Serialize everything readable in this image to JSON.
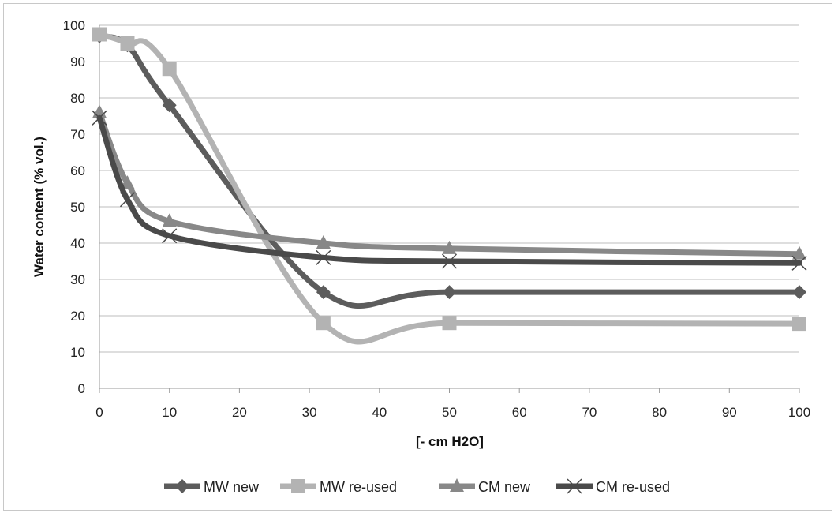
{
  "chart_data": {
    "type": "line",
    "title": "",
    "xlabel": "[- cm H2O]",
    "xlabel_main": "[- cm H",
    "xlabel_sub": "2",
    "xlabel_end": "O]",
    "ylabel": "Water content (% vol.)",
    "xlim": [
      0,
      100
    ],
    "ylim": [
      0,
      100
    ],
    "xticks": [
      0,
      10,
      20,
      30,
      40,
      50,
      60,
      70,
      80,
      90,
      100
    ],
    "yticks": [
      0,
      10,
      20,
      30,
      40,
      50,
      60,
      70,
      80,
      90,
      100
    ],
    "grid": "horizontal",
    "legend_position": "bottom",
    "x": [
      0,
      4,
      10,
      32,
      50,
      100
    ],
    "series": [
      {
        "name": "MW new",
        "marker": "diamond",
        "color": "#5c5c5c",
        "values": [
          97,
          94.5,
          78,
          26.5,
          26.5,
          26.5
        ]
      },
      {
        "name": "MW re-used",
        "marker": "square",
        "color": "#b3b3b3",
        "values": [
          97.5,
          95,
          88,
          18,
          18,
          17.8
        ]
      },
      {
        "name": "CM new",
        "marker": "triangle",
        "color": "#888888",
        "values": [
          76,
          56.5,
          46,
          40,
          38.5,
          37
        ]
      },
      {
        "name": "CM re-used",
        "marker": "x",
        "color": "#4a4a4a",
        "values": [
          74.5,
          52,
          42,
          36,
          35,
          34.5
        ]
      }
    ]
  }
}
